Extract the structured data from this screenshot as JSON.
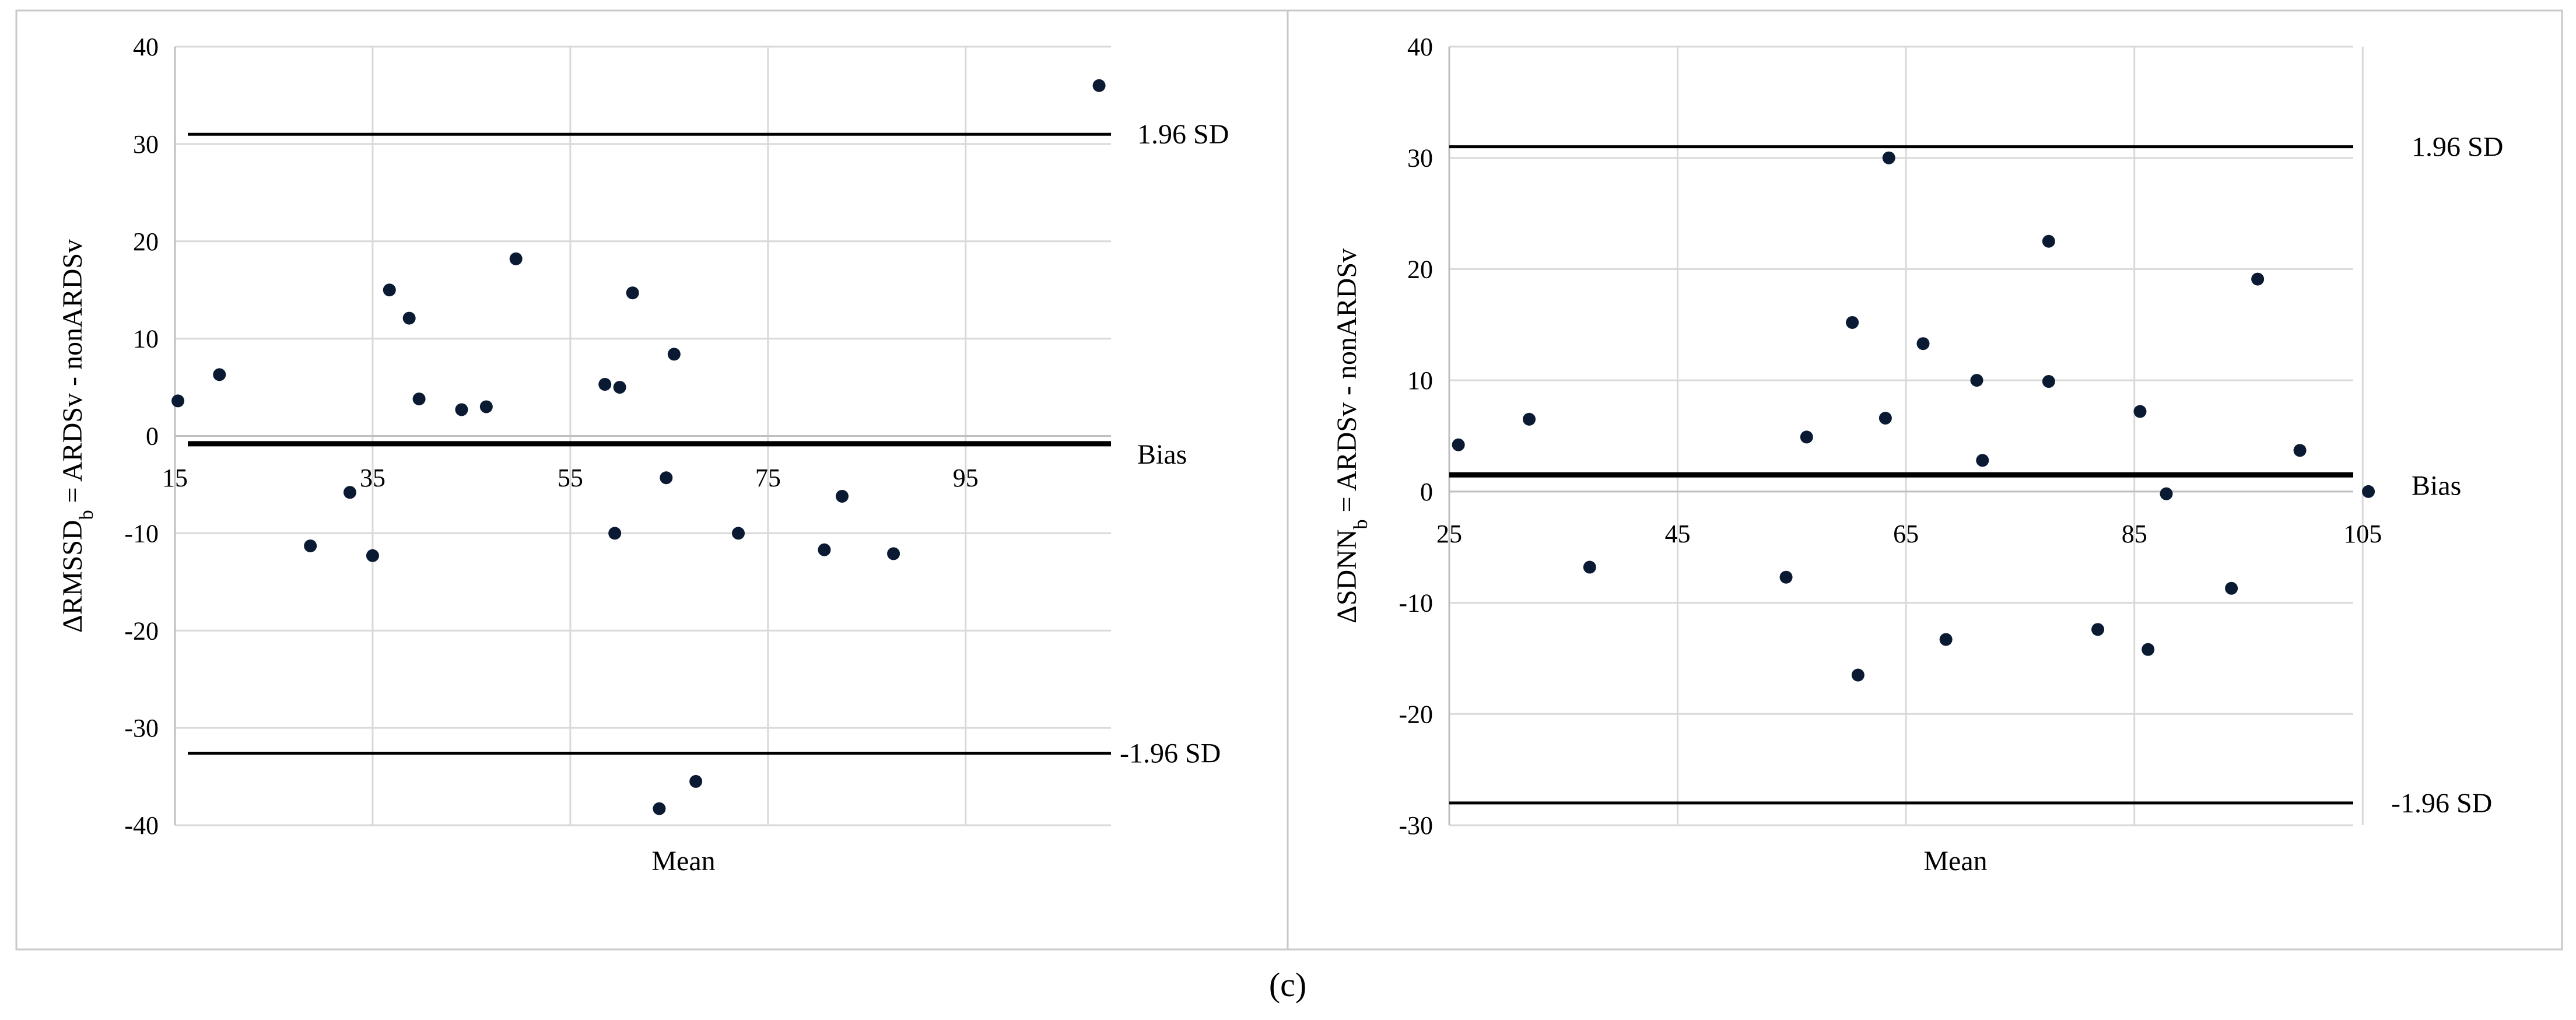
{
  "caption": "(c)",
  "chart_data": [
    {
      "type": "scatter",
      "title": "",
      "xlabel": "Mean",
      "ylabel": {
        "text": "ΔRMSSD",
        "sub": "b",
        "rest": " = ARDSv - nonARDSv"
      },
      "xlim": [
        15,
        110
      ],
      "ylim": [
        -40,
        40
      ],
      "xticks": [
        "15",
        "35",
        "55",
        "75",
        "95"
      ],
      "yticks": [
        "40",
        "30",
        "20",
        "10",
        "0",
        "-10",
        "-20",
        "-30",
        "-40"
      ],
      "grid": true,
      "reference_lines": [
        {
          "label": "1.96 SD",
          "y": 31
        },
        {
          "label": "Bias",
          "y": -0.8
        },
        {
          "label": "-1.96 SD",
          "y": -32.6
        }
      ],
      "points": [
        {
          "x": 15.3,
          "y": 3.6
        },
        {
          "x": 19.5,
          "y": 6.3
        },
        {
          "x": 28.7,
          "y": -11.3
        },
        {
          "x": 32.7,
          "y": -5.8
        },
        {
          "x": 35.0,
          "y": -12.3
        },
        {
          "x": 36.7,
          "y": 15.0
        },
        {
          "x": 38.7,
          "y": 12.1
        },
        {
          "x": 39.7,
          "y": 3.8
        },
        {
          "x": 44.0,
          "y": 2.7
        },
        {
          "x": 46.5,
          "y": 3.0
        },
        {
          "x": 49.5,
          "y": 18.2
        },
        {
          "x": 58.5,
          "y": 5.3
        },
        {
          "x": 59.5,
          "y": -10.0
        },
        {
          "x": 60.0,
          "y": 5.0
        },
        {
          "x": 61.3,
          "y": 14.7
        },
        {
          "x": 64.0,
          "y": -38.3
        },
        {
          "x": 64.7,
          "y": -4.3
        },
        {
          "x": 65.5,
          "y": 8.4
        },
        {
          "x": 67.7,
          "y": -35.5
        },
        {
          "x": 72.0,
          "y": -10.0
        },
        {
          "x": 80.7,
          "y": -11.7
        },
        {
          "x": 82.5,
          "y": -6.2
        },
        {
          "x": 87.7,
          "y": -12.1
        },
        {
          "x": 108.5,
          "y": 36.0
        }
      ]
    },
    {
      "type": "scatter",
      "title": "",
      "xlabel": "Mean",
      "ylabel": {
        "text": "ΔSDNN",
        "sub": "b",
        "rest": " = ARDSv - nonARDSv"
      },
      "xlim": [
        25,
        108
      ],
      "ylim": [
        -30,
        40
      ],
      "xticks": [
        "25",
        "45",
        "65",
        "85",
        "105"
      ],
      "yticks": [
        "40",
        "30",
        "20",
        "10",
        "0",
        "-10",
        "-20",
        "-30"
      ],
      "grid": true,
      "reference_lines": [
        {
          "label": "1.96 SD",
          "y": 31
        },
        {
          "label": "Bias",
          "y": 1.5
        },
        {
          "label": "-1.96 SD",
          "y": -28
        }
      ],
      "points": [
        {
          "x": 25.8,
          "y": 4.2
        },
        {
          "x": 32.0,
          "y": 6.5
        },
        {
          "x": 37.3,
          "y": -6.8
        },
        {
          "x": 54.5,
          "y": -7.7
        },
        {
          "x": 56.3,
          "y": 4.9
        },
        {
          "x": 60.3,
          "y": 15.2
        },
        {
          "x": 60.8,
          "y": -16.5
        },
        {
          "x": 63.2,
          "y": 6.6
        },
        {
          "x": 63.5,
          "y": 30.0
        },
        {
          "x": 66.5,
          "y": 13.3
        },
        {
          "x": 68.5,
          "y": -13.3
        },
        {
          "x": 71.2,
          "y": 10.0
        },
        {
          "x": 71.7,
          "y": 2.8
        },
        {
          "x": 77.5,
          "y": 9.9
        },
        {
          "x": 77.5,
          "y": 22.5
        },
        {
          "x": 81.8,
          "y": -12.4
        },
        {
          "x": 85.5,
          "y": 7.2
        },
        {
          "x": 86.2,
          "y": -14.2
        },
        {
          "x": 87.8,
          "y": -0.2
        },
        {
          "x": 93.5,
          "y": -8.7
        },
        {
          "x": 95.8,
          "y": 19.1
        },
        {
          "x": 99.5,
          "y": 3.7
        },
        {
          "x": 105.5,
          "y": 0
        }
      ]
    }
  ]
}
